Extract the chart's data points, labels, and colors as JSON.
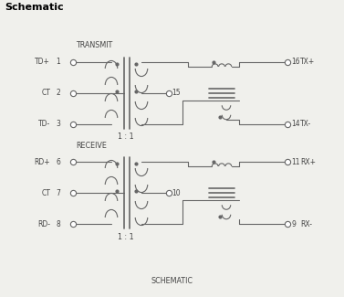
{
  "bg_color": "#f0f0ec",
  "line_color": "#666666",
  "text_color": "#444444",
  "fig_width": 3.77,
  "fig_height": 3.25,
  "dpi": 100,
  "title": "Schematic",
  "transmit_label": "TRANSMIT",
  "receive_label": "RECEIVE",
  "schematic_label": "SCHEMATIC",
  "ratio_label": "1 : 1"
}
